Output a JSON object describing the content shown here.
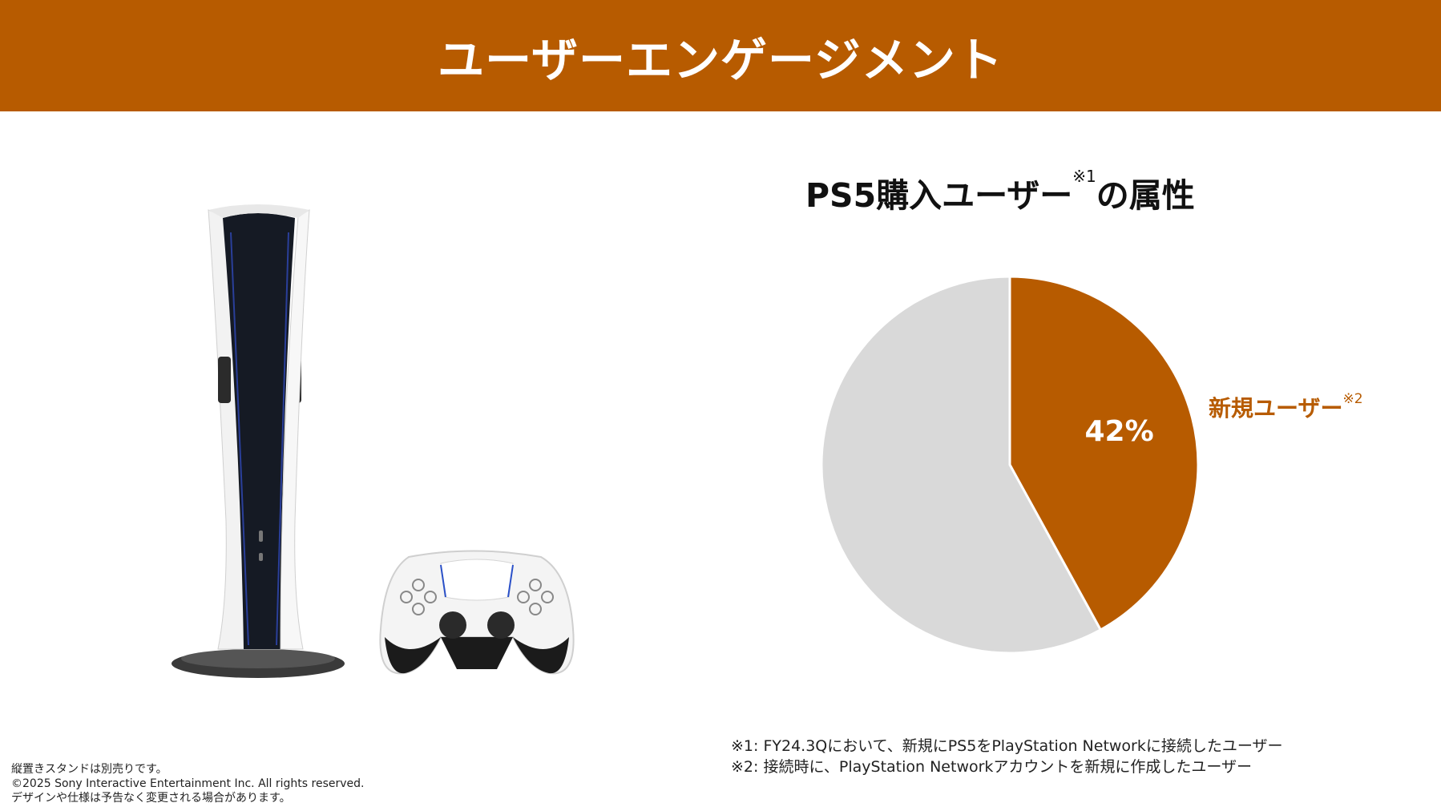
{
  "header": {
    "title": "ユーザーエンゲージメント"
  },
  "chart_title": {
    "text": "PS5購入ユーザー",
    "sup": "※1",
    "suffix": "の属性"
  },
  "chart_data": {
    "type": "pie",
    "slices": [
      {
        "label": "新規ユーザー",
        "value": 42,
        "color": "#b75b00"
      },
      {
        "label": "",
        "value": 58,
        "color": "#d9d9d9"
      }
    ],
    "data_label": "42%",
    "legend_label": "新規ユーザー",
    "legend_sup": "※2"
  },
  "footnotes": [
    "※1:  FY24.3Qにおいて、新規にPS5をPlayStation Networkに接続したユーザー",
    "※2:  接続時に、PlayStation Networkアカウントを新規に作成したユーザー"
  ],
  "copyright_lines": [
    "縦置きスタンドは別売りです。",
    "©2025 Sony Interactive Entertainment Inc. All rights reserved.",
    "デザインや仕様は予告なく変更される場合があります。"
  ]
}
